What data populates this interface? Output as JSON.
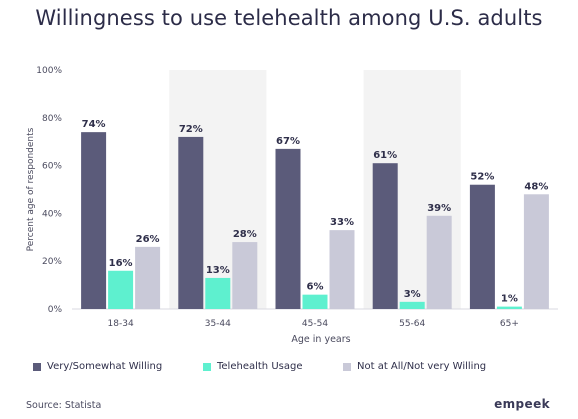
{
  "title": "Willingness to use telehealth among U.S. adults",
  "source": "Source: Statista",
  "brand": "empeek",
  "colors": {
    "very_somewhat": "#5b5b7a",
    "telehealth": "#5ef0cf",
    "not_at_all": "#c9c9d8",
    "band": "#f3f3f3",
    "axis_text": "#4a4a5e"
  },
  "chart_data": {
    "type": "bar",
    "title": "Willingness to use telehealth among U.S. adults",
    "xlabel": "Age in years",
    "ylabel": "Percent age of respondents",
    "ylim": [
      0,
      100
    ],
    "yticks": [
      "0%",
      "20%",
      "40%",
      "60%",
      "80%",
      "100%"
    ],
    "ytick_values": [
      0,
      20,
      40,
      60,
      80,
      100
    ],
    "categories": [
      "18-34",
      "35-44",
      "45-54",
      "55-64",
      "65+"
    ],
    "series": [
      {
        "name": "Very/Somewhat Willing",
        "values": [
          74,
          72,
          67,
          61,
          52
        ],
        "labels": [
          "74%",
          "72%",
          "67%",
          "61%",
          "52%"
        ]
      },
      {
        "name": "Telehealth Usage",
        "values": [
          16,
          13,
          6,
          3,
          1
        ],
        "labels": [
          "16%",
          "13%",
          "6%",
          "3%",
          "1%"
        ]
      },
      {
        "name": "Not at All/Not very Willing",
        "values": [
          26,
          28,
          33,
          39,
          48
        ],
        "labels": [
          "26%",
          "28%",
          "33%",
          "39%",
          "48%"
        ]
      }
    ],
    "legend_position": "bottom"
  }
}
